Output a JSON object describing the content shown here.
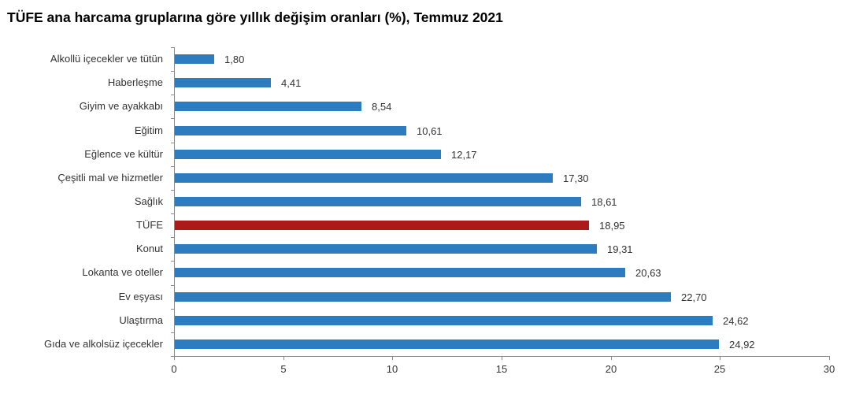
{
  "title": "TÜFE ana harcama gruplarına göre yıllık değişim oranları (%), Temmuz 2021",
  "colors": {
    "default_bar": "#2e7cc0",
    "highlight_bar": "#ab1b1b",
    "axis": "#8a8a8a"
  },
  "chart_data": {
    "type": "bar",
    "orientation": "horizontal",
    "title": "TÜFE ana harcama gruplarına göre yıllık değişim oranları (%), Temmuz 2021",
    "xlabel": "",
    "ylabel": "",
    "xlim": [
      0,
      30
    ],
    "xticks": [
      "0",
      "5",
      "10",
      "15",
      "20",
      "25",
      "30"
    ],
    "grid": false,
    "legend": null,
    "categories": [
      "Alkollü içecekler ve tütün",
      "Haberleşme",
      "Giyim ve ayakkabı",
      "Eğitim",
      "Eğlence ve kültür",
      "Çeşitli mal ve hizmetler",
      "Sağlık",
      "TÜFE",
      "Konut",
      "Lokanta ve oteller",
      "Ev eşyası",
      "Ulaştırma",
      "Gıda ve alkolsüz içecekler"
    ],
    "values": [
      1.8,
      4.41,
      8.54,
      10.61,
      12.17,
      17.3,
      18.61,
      18.95,
      19.31,
      20.63,
      22.7,
      24.62,
      24.92
    ],
    "value_labels": [
      "1,80",
      "4,41",
      "8,54",
      "10,61",
      "12,17",
      "17,30",
      "18,61",
      "18,95",
      "19,31",
      "20,63",
      "22,70",
      "24,62",
      "24,92"
    ],
    "highlight_category": "TÜFE"
  }
}
